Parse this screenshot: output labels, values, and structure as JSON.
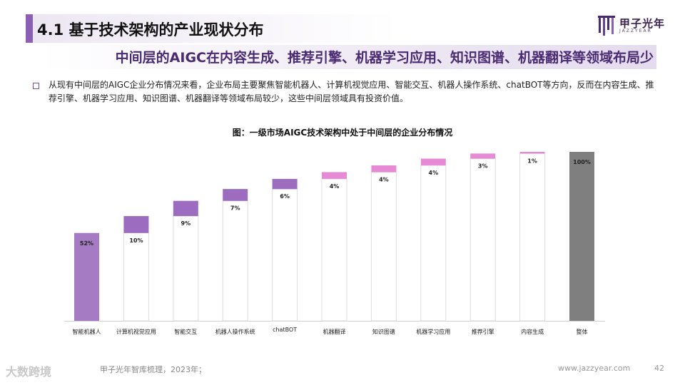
{
  "header": {
    "title": "4.1 基于技术架构的产业现状分布",
    "logo_cn": "甲子光年",
    "logo_en": "JAZZYEAR"
  },
  "subtitle": "中间层的AIGC在内容生成、推荐引擎、机器学习应用、知识图谱、机器翻译等领域布局少",
  "body": "从现有中间层的AIGC企业分布情况来看，企业布局主要聚焦智能机器人、计算机视觉应用、智能交互、机器人操作系统、chatBOT等方向，反而在内容生成、推荐引擎、机器学习应用、知识图谱、机器翻译等领域布局较少，这些中间层领域具有投资价值。",
  "chart_data": {
    "type": "bar",
    "subtype": "waterfall",
    "title": "图：一级市场AIGC技术架构中处于中间层的企业分布情况",
    "categories": [
      "智能机器人",
      "计算机视觉应用",
      "智能交互",
      "机器人操作系统",
      "chatBOT",
      "机器翻译",
      "知识图谱",
      "机器学习应用",
      "推荐引擎",
      "内容生成",
      "整体"
    ],
    "values": [
      52,
      10,
      9,
      7,
      6,
      4,
      4,
      4,
      3,
      1,
      100
    ],
    "labels": [
      "52%",
      "10%",
      "9%",
      "7%",
      "6%",
      "4%",
      "4%",
      "4%",
      "3%",
      "1%",
      "100%"
    ],
    "ylim": [
      0,
      100
    ],
    "colors": {
      "first": "#a57bc4",
      "mid": "#9b6cc0",
      "light": "#e68ad6",
      "total": "#7f7f7f"
    }
  },
  "footer": {
    "source": "甲子光年智库梳理，2023年；",
    "url": "www.jazzyear.com",
    "page": "42",
    "watermark": "大数跨境"
  }
}
